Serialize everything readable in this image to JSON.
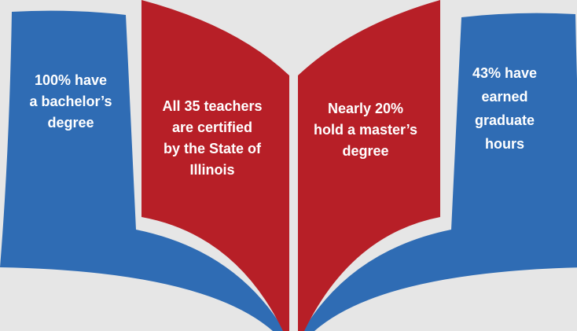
{
  "panels": [
    {
      "lines": [
        "100% have",
        "a bachelor’s",
        "degree"
      ]
    },
    {
      "lines": [
        "All 35 teachers",
        "are certified",
        "by the State of",
        "Illinois"
      ]
    },
    {
      "lines": [
        "Nearly 20%",
        "hold a master’s",
        "degree"
      ]
    },
    {
      "lines": [
        "43% have",
        "earned",
        "graduate",
        "hours"
      ]
    }
  ]
}
